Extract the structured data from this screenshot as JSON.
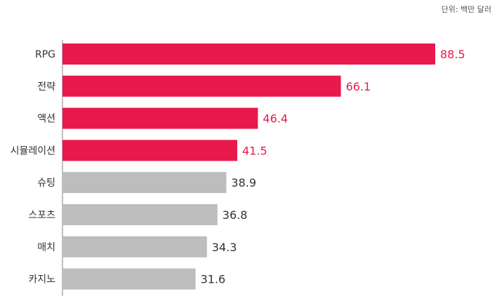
{
  "unit_label": "단위: 백만 달러",
  "chart_data": {
    "type": "bar",
    "orientation": "horizontal",
    "categories": [
      "RPG",
      "전략",
      "액션",
      "시뮬레이션",
      "슈팅",
      "스포츠",
      "매치",
      "카지노"
    ],
    "values": [
      88.5,
      66.1,
      46.4,
      41.5,
      38.9,
      36.8,
      34.3,
      31.6
    ],
    "highlight_count": 4,
    "xlim": [
      0,
      100
    ],
    "grid": false,
    "colors": {
      "highlight": "#e8194d",
      "normal": "#bdbdbd",
      "highlight_label": "#e8194d",
      "normal_label": "#333333",
      "axis": "#7f7f7f"
    }
  }
}
